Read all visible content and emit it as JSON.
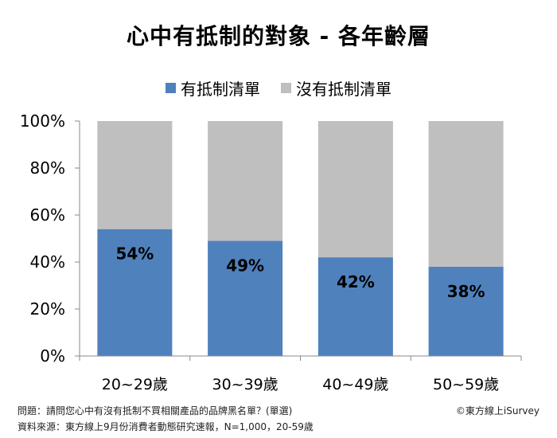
{
  "chart_data": {
    "type": "bar",
    "stacked": true,
    "title": "心中有抵制的對象 - 各年齡層",
    "categories": [
      "20~29歲",
      "30~39歲",
      "40~49歲",
      "50~59歲"
    ],
    "series": [
      {
        "name": "有抵制清單",
        "values": [
          54,
          49,
          42,
          38
        ],
        "color": "#4f81bd"
      },
      {
        "name": "沒有抵制清單",
        "values": [
          46,
          51,
          58,
          62
        ],
        "color": "#bfbfbf"
      }
    ],
    "data_labels": [
      "54%",
      "49%",
      "42%",
      "38%"
    ],
    "y_ticks": [
      "0%",
      "20%",
      "40%",
      "60%",
      "80%",
      "100%"
    ],
    "ylim": [
      0,
      100
    ],
    "grid": false,
    "legend_position": "top"
  },
  "footer": {
    "question": "問題：請問您心中有沒有抵制不買相關產品的品牌黑名單？(單選)",
    "source": "資料來源：東方線上9月份消費者動態研究速報，N=1,000，20-59歲",
    "copyright": "©東方線上iSurvey"
  }
}
